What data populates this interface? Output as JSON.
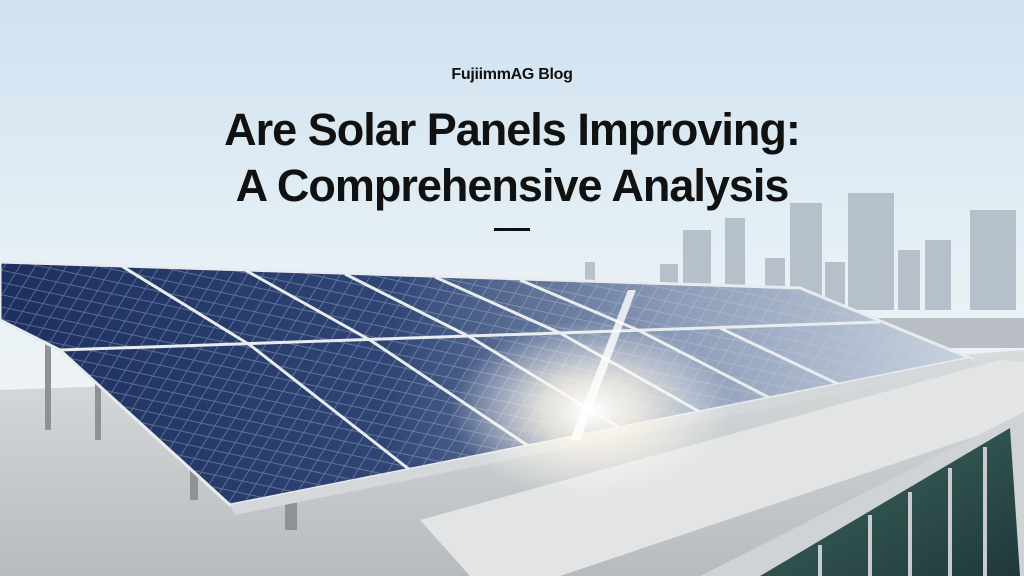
{
  "header": {
    "brand": "FujiimmAG Blog",
    "title_lines": [
      "Are Solar Panels Improving:",
      "A Comprehensive Analysis"
    ]
  }
}
